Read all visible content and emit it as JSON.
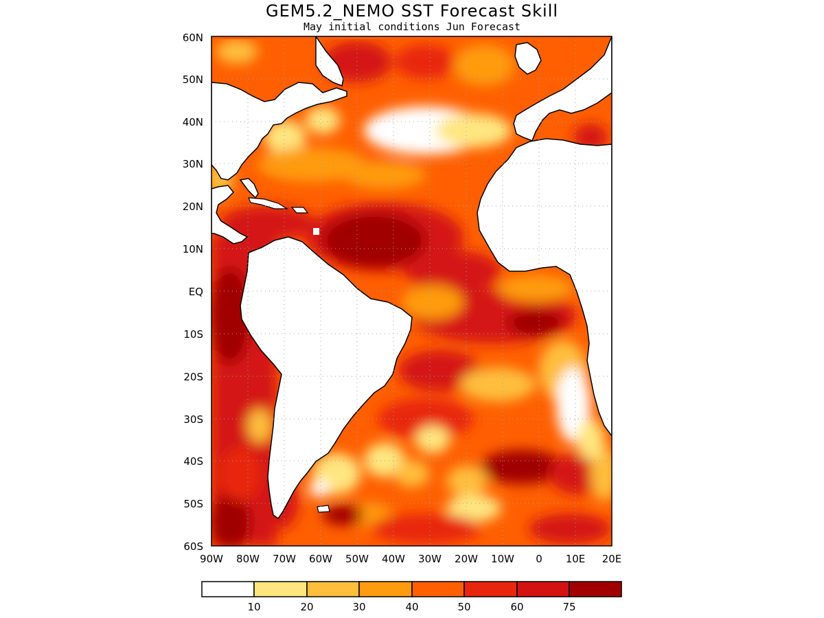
{
  "title": "GEM5.2_NEMO SST Forecast Skill",
  "subtitle": "May initial conditions  Jun Forecast",
  "lat_ticks": [
    "60N",
    "50N",
    "40N",
    "30N",
    "20N",
    "10N",
    "EQ",
    "10S",
    "20S",
    "30S",
    "40S",
    "50S",
    "60S"
  ],
  "lon_ticks": [
    "90W",
    "80W",
    "70W",
    "60W",
    "50W",
    "40W",
    "30W",
    "20W",
    "10W",
    "0",
    "10E",
    "20E"
  ],
  "map_extent": {
    "lon_min": -90,
    "lon_max": 20,
    "lat_min": -60,
    "lat_max": 60
  },
  "legend": {
    "colors": [
      "#ffffff",
      "#ffe680",
      "#ffbe3c",
      "#ff9b0f",
      "#ff5f00",
      "#e8260e",
      "#d41212",
      "#a00000"
    ],
    "labels": [
      "10",
      "20",
      "30",
      "40",
      "50",
      "60",
      "75"
    ]
  },
  "colors": {
    "land": "#ffffff",
    "coastline": "#000000",
    "grid": "#a0a0a0"
  }
}
